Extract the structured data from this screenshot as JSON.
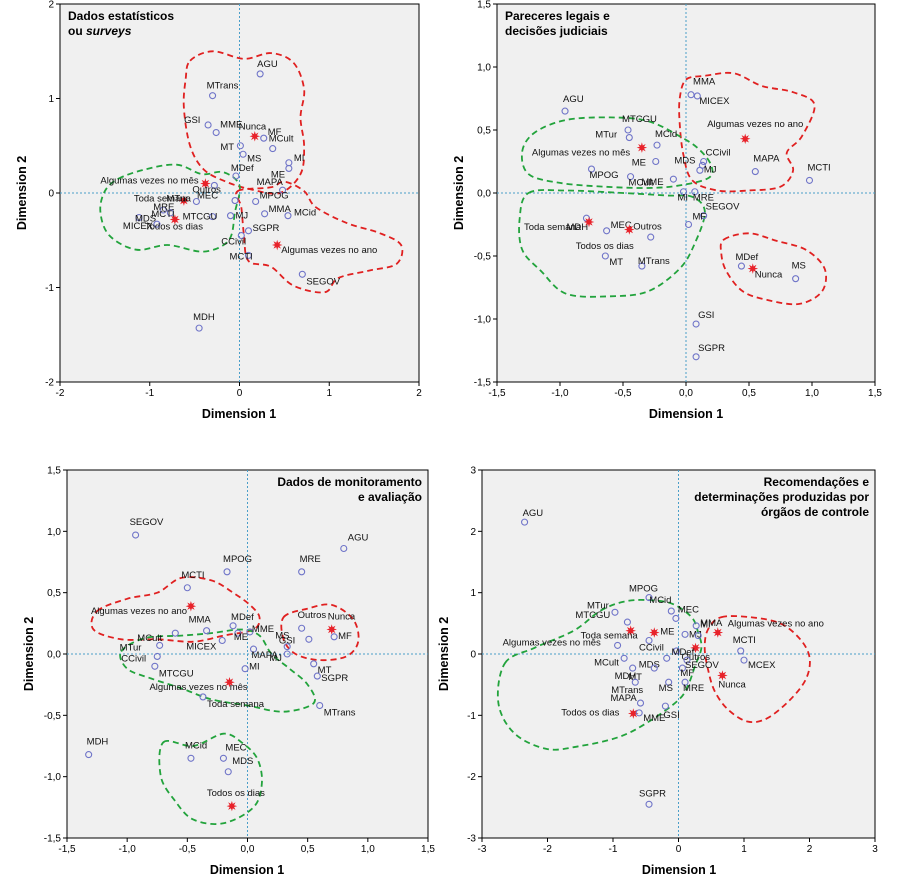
{
  "colors": {
    "panel_bg": "#f0f0f0",
    "point_stroke": "#6f74c8",
    "star": "#e8222a",
    "red_outline": "#e02020",
    "green_outline": "#22a33c",
    "refline": "#4a9ec9"
  },
  "chart_data": [
    {
      "type": "scatter",
      "title": "Dados estatísticos ou surveys",
      "title_lines": [
        "Dados estatísticos",
        "ou surveys"
      ],
      "title_position": "top-left",
      "xlabel": "Dimension 1",
      "ylabel": "Dimension 2",
      "xlim": [
        -2,
        2
      ],
      "ylim": [
        -2,
        2
      ],
      "xticks": [
        -2,
        -1,
        0,
        1,
        2
      ],
      "yticks": [
        -2,
        -1,
        0,
        1,
        2
      ],
      "xtick_labels": [
        "-2",
        "-1",
        "0",
        "1",
        "2"
      ],
      "ytick_labels": [
        "-2",
        "-1",
        "0",
        "1",
        "2"
      ],
      "points": [
        {
          "label": "AGU",
          "x": 0.23,
          "y": 1.26,
          "kind": "circle"
        },
        {
          "label": "MTrans",
          "x": -0.3,
          "y": 1.03,
          "kind": "circle"
        },
        {
          "label": "GSI",
          "x": -0.35,
          "y": 0.72,
          "kind": "circle"
        },
        {
          "label": "MME",
          "x": -0.26,
          "y": 0.64,
          "kind": "circle"
        },
        {
          "label": "Nunca",
          "x": 0.17,
          "y": 0.6,
          "kind": "star"
        },
        {
          "label": "MF",
          "x": 0.27,
          "y": 0.58,
          "kind": "circle"
        },
        {
          "label": "MT",
          "x": 0.01,
          "y": 0.5,
          "kind": "circle"
        },
        {
          "label": "MCult",
          "x": 0.37,
          "y": 0.47,
          "kind": "circle"
        },
        {
          "label": "MS",
          "x": 0.04,
          "y": 0.41,
          "kind": "circle"
        },
        {
          "label": "MI",
          "x": 0.55,
          "y": 0.32,
          "kind": "circle"
        },
        {
          "label": "ME",
          "x": 0.55,
          "y": 0.26,
          "kind": "circle"
        },
        {
          "label": "MDef",
          "x": -0.04,
          "y": 0.18,
          "kind": "circle"
        },
        {
          "label": "Algumas vezes no mês",
          "x": -0.38,
          "y": 0.1,
          "kind": "star"
        },
        {
          "label": "Outros",
          "x": -0.28,
          "y": 0.08,
          "kind": "circle"
        },
        {
          "label": "MAPA",
          "x": 0.48,
          "y": 0.03,
          "kind": "circle"
        },
        {
          "label": "Toda semana",
          "x": -0.62,
          "y": -0.08,
          "kind": "star"
        },
        {
          "label": "MTur",
          "x": -0.48,
          "y": -0.09,
          "kind": "circle"
        },
        {
          "label": "MEC",
          "x": -0.05,
          "y": -0.08,
          "kind": "circle"
        },
        {
          "label": "MPOG",
          "x": 0.18,
          "y": -0.09,
          "kind": "circle"
        },
        {
          "label": "MRE",
          "x": -0.85,
          "y": -0.18,
          "kind": "circle"
        },
        {
          "label": "MDS",
          "x": -1.12,
          "y": -0.26,
          "kind": "circle"
        },
        {
          "label": "MCTI",
          "x": -0.77,
          "y": -0.21,
          "kind": "circle"
        },
        {
          "label": "MTCGU",
          "x": -0.3,
          "y": -0.25,
          "kind": "circle"
        },
        {
          "label": "MJ",
          "x": -0.1,
          "y": -0.24,
          "kind": "circle"
        },
        {
          "label": "MMA",
          "x": 0.28,
          "y": -0.22,
          "kind": "circle"
        },
        {
          "label": "MCid",
          "x": 0.54,
          "y": -0.24,
          "kind": "circle"
        },
        {
          "label": "MICEX",
          "x": -0.92,
          "y": -0.33,
          "kind": "circle"
        },
        {
          "label": "Todos os dias",
          "x": -0.72,
          "y": -0.28,
          "kind": "star"
        },
        {
          "label": "SGPR",
          "x": 0.1,
          "y": -0.4,
          "kind": "circle"
        },
        {
          "label": "CCivil",
          "x": 0.02,
          "y": -0.45,
          "kind": "circle"
        },
        {
          "label": "Algumas vezes no ano",
          "x": 0.42,
          "y": -0.55,
          "kind": "star"
        },
        {
          "label": "MCTI",
          "x": 0.1,
          "y": -0.66,
          "kind": "circle"
        },
        {
          "label": "SEGOV",
          "x": 0.7,
          "y": -0.86,
          "kind": "circle"
        },
        {
          "label": "MDH",
          "x": -0.45,
          "y": -1.43,
          "kind": "circle"
        }
      ]
    },
    {
      "type": "scatter",
      "title": "Pareceres legais e decisões judiciais",
      "title_lines": [
        "Pareceres legais e",
        "decisões judiciais"
      ],
      "title_position": "top-left",
      "xlabel": "Dimension 1",
      "ylabel": "Dimension 2",
      "xlim": [
        -1.5,
        1.5
      ],
      "ylim": [
        -1.5,
        1.5
      ],
      "xticks": [
        -1.5,
        -1.0,
        -0.5,
        0.0,
        0.5,
        1.0,
        1.5
      ],
      "yticks": [
        -1.5,
        -1.0,
        -0.5,
        0.0,
        0.5,
        1.0,
        1.5
      ],
      "xtick_labels": [
        "-1,5",
        "-1,0",
        "-0,5",
        "0,0",
        "0,5",
        "1,0",
        "1,5"
      ],
      "ytick_labels": [
        "-1,5",
        "-1,0",
        "-0,5",
        "0,0",
        "0,5",
        "1,0",
        "1,5"
      ],
      "points": [
        {
          "label": "MMA",
          "x": 0.04,
          "y": 0.78,
          "kind": "circle"
        },
        {
          "label": "MICEX",
          "x": 0.09,
          "y": 0.77,
          "kind": "circle"
        },
        {
          "label": "AGU",
          "x": -0.96,
          "y": 0.65,
          "kind": "circle"
        },
        {
          "label": "MTCGU",
          "x": -0.46,
          "y": 0.5,
          "kind": "circle"
        },
        {
          "label": "MTur",
          "x": -0.45,
          "y": 0.44,
          "kind": "circle"
        },
        {
          "label": "Algumas vezes no ano",
          "x": 0.47,
          "y": 0.43,
          "kind": "star"
        },
        {
          "label": "MCid",
          "x": -0.23,
          "y": 0.38,
          "kind": "circle"
        },
        {
          "label": "Algumas vezes no mês",
          "x": -0.35,
          "y": 0.36,
          "kind": "star"
        },
        {
          "label": "CCivil",
          "x": 0.14,
          "y": 0.25,
          "kind": "circle"
        },
        {
          "label": "ME",
          "x": -0.24,
          "y": 0.25,
          "kind": "circle"
        },
        {
          "label": "MDS",
          "x": 0.13,
          "y": 0.22,
          "kind": "circle"
        },
        {
          "label": "MAPA",
          "x": 0.55,
          "y": 0.17,
          "kind": "circle"
        },
        {
          "label": "MPOG",
          "x": -0.75,
          "y": 0.19,
          "kind": "circle"
        },
        {
          "label": "MJ",
          "x": 0.11,
          "y": 0.18,
          "kind": "circle"
        },
        {
          "label": "MCTI",
          "x": 0.98,
          "y": 0.1,
          "kind": "circle"
        },
        {
          "label": "MCult",
          "x": -0.44,
          "y": 0.13,
          "kind": "circle"
        },
        {
          "label": "MME",
          "x": -0.1,
          "y": 0.11,
          "kind": "circle"
        },
        {
          "label": "MI",
          "x": -0.02,
          "y": 0.01,
          "kind": "circle"
        },
        {
          "label": "MRE",
          "x": 0.07,
          "y": 0.01,
          "kind": "circle"
        },
        {
          "label": "SEGOV",
          "x": 0.14,
          "y": -0.18,
          "kind": "circle"
        },
        {
          "label": "MDH",
          "x": -0.79,
          "y": -0.2,
          "kind": "circle"
        },
        {
          "label": "MF",
          "x": 0.02,
          "y": -0.25,
          "kind": "circle"
        },
        {
          "label": "Toda semana",
          "x": -0.77,
          "y": -0.23,
          "kind": "star"
        },
        {
          "label": "MEC",
          "x": -0.63,
          "y": -0.3,
          "kind": "circle"
        },
        {
          "label": "Outros",
          "x": -0.45,
          "y": -0.29,
          "kind": "star"
        },
        {
          "label": "Todos os dias",
          "x": -0.28,
          "y": -0.35,
          "kind": "circle"
        },
        {
          "label": "MT",
          "x": -0.64,
          "y": -0.5,
          "kind": "circle"
        },
        {
          "label": "MTrans",
          "x": -0.35,
          "y": -0.58,
          "kind": "circle"
        },
        {
          "label": "MDef",
          "x": 0.44,
          "y": -0.58,
          "kind": "circle"
        },
        {
          "label": "Nunca",
          "x": 0.53,
          "y": -0.6,
          "kind": "star"
        },
        {
          "label": "MS",
          "x": 0.87,
          "y": -0.68,
          "kind": "circle"
        },
        {
          "label": "GSI",
          "x": 0.08,
          "y": -1.04,
          "kind": "circle"
        },
        {
          "label": "SGPR",
          "x": 0.08,
          "y": -1.3,
          "kind": "circle"
        }
      ]
    },
    {
      "type": "scatter",
      "title": "Dados de monitoramento e avaliação",
      "title_lines": [
        "Dados de monitoramento",
        "e avaliação"
      ],
      "title_position": "top-right",
      "xlabel": "Dimension 1",
      "ylabel": "Dimension 2",
      "xlim": [
        -1.5,
        1.5
      ],
      "ylim": [
        -1.5,
        1.5
      ],
      "xticks": [
        -1.5,
        -1.0,
        -0.5,
        0.0,
        0.5,
        1.0,
        1.5
      ],
      "yticks": [
        -1.5,
        -1.0,
        -0.5,
        0.0,
        0.5,
        1.0,
        1.5
      ],
      "xtick_labels": [
        "-1,5",
        "-1,0",
        "-0,5",
        "0,0",
        "0,5",
        "1,0",
        "1,5"
      ],
      "ytick_labels": [
        "-1,5",
        "-1,0",
        "-0,5",
        "0,0",
        "0,5",
        "1,0",
        "1,5"
      ],
      "points": [
        {
          "label": "SEGOV",
          "x": -0.93,
          "y": 0.97,
          "kind": "circle"
        },
        {
          "label": "AGU",
          "x": 0.8,
          "y": 0.86,
          "kind": "circle"
        },
        {
          "label": "MPOG",
          "x": -0.17,
          "y": 0.67,
          "kind": "circle"
        },
        {
          "label": "MRE",
          "x": 0.45,
          "y": 0.67,
          "kind": "circle"
        },
        {
          "label": "MCTI",
          "x": -0.5,
          "y": 0.54,
          "kind": "circle"
        },
        {
          "label": "Algumas vezes no ano",
          "x": -0.47,
          "y": 0.39,
          "kind": "star"
        },
        {
          "label": "MMA",
          "x": -0.34,
          "y": 0.19,
          "kind": "circle"
        },
        {
          "label": "MDef",
          "x": -0.12,
          "y": 0.23,
          "kind": "circle"
        },
        {
          "label": "Outros",
          "x": 0.45,
          "y": 0.21,
          "kind": "circle"
        },
        {
          "label": "Nunca",
          "x": 0.7,
          "y": 0.2,
          "kind": "star"
        },
        {
          "label": "MCult",
          "x": -0.6,
          "y": 0.17,
          "kind": "circle"
        },
        {
          "label": "ME",
          "x": -0.08,
          "y": 0.17,
          "kind": "circle"
        },
        {
          "label": "MME",
          "x": 0.02,
          "y": 0.18,
          "kind": "circle"
        },
        {
          "label": "MF",
          "x": 0.72,
          "y": 0.14,
          "kind": "circle"
        },
        {
          "label": "MICEX",
          "x": -0.21,
          "y": 0.11,
          "kind": "circle"
        },
        {
          "label": "GSI",
          "x": 0.51,
          "y": 0.12,
          "kind": "circle"
        },
        {
          "label": "MTur",
          "x": -0.73,
          "y": 0.07,
          "kind": "circle"
        },
        {
          "label": "MS",
          "x": 0.33,
          "y": 0.06,
          "kind": "circle"
        },
        {
          "label": "MAPA",
          "x": 0.05,
          "y": 0.04,
          "kind": "circle"
        },
        {
          "label": "MJ",
          "x": 0.33,
          "y": 0.0,
          "kind": "circle"
        },
        {
          "label": "CCivil",
          "x": -0.75,
          "y": -0.02,
          "kind": "circle"
        },
        {
          "label": "MT",
          "x": 0.55,
          "y": -0.08,
          "kind": "circle"
        },
        {
          "label": "MTCGU",
          "x": -0.77,
          "y": -0.1,
          "kind": "circle"
        },
        {
          "label": "MI",
          "x": -0.02,
          "y": -0.12,
          "kind": "circle"
        },
        {
          "label": "SGPR",
          "x": 0.58,
          "y": -0.18,
          "kind": "circle"
        },
        {
          "label": "Algumas vezes no mês",
          "x": -0.15,
          "y": -0.23,
          "kind": "star"
        },
        {
          "label": "Toda semana",
          "x": -0.37,
          "y": -0.35,
          "kind": "circle"
        },
        {
          "label": "MTrans",
          "x": 0.6,
          "y": -0.42,
          "kind": "circle"
        },
        {
          "label": "MDH",
          "x": -1.32,
          "y": -0.82,
          "kind": "circle"
        },
        {
          "label": "MCid",
          "x": -0.47,
          "y": -0.85,
          "kind": "circle"
        },
        {
          "label": "MEC",
          "x": -0.2,
          "y": -0.85,
          "kind": "circle"
        },
        {
          "label": "MDS",
          "x": -0.16,
          "y": -0.96,
          "kind": "circle"
        },
        {
          "label": "Todos os dias",
          "x": -0.13,
          "y": -1.24,
          "kind": "star"
        }
      ]
    },
    {
      "type": "scatter",
      "title": "Recomendações e determinações produzidas por órgãos de controle",
      "title_lines": [
        "Recomendações e",
        "determinações produzidas por",
        "órgãos de controle"
      ],
      "title_position": "top-right",
      "xlabel": "Dimension 1",
      "ylabel": "Dimension 2",
      "xlim": [
        -3,
        3
      ],
      "ylim": [
        -3,
        3
      ],
      "xticks": [
        -3,
        -2,
        -1,
        0,
        1,
        2,
        3
      ],
      "yticks": [
        -3,
        -2,
        -1,
        0,
        1,
        2,
        3
      ],
      "xtick_labels": [
        "-3",
        "-2",
        "-1",
        "0",
        "1",
        "2",
        "3"
      ],
      "ytick_labels": [
        "-3",
        "-2",
        "-1",
        "0",
        "1",
        "2",
        "3"
      ],
      "points": [
        {
          "label": "AGU",
          "x": -2.35,
          "y": 2.15,
          "kind": "circle"
        },
        {
          "label": "MPOG",
          "x": -0.45,
          "y": 0.92,
          "kind": "circle"
        },
        {
          "label": "MTur",
          "x": -0.97,
          "y": 0.68,
          "kind": "circle"
        },
        {
          "label": "MCid",
          "x": -0.11,
          "y": 0.7,
          "kind": "circle"
        },
        {
          "label": "MEC",
          "x": -0.04,
          "y": 0.58,
          "kind": "circle"
        },
        {
          "label": "MTCGU",
          "x": -0.78,
          "y": 0.52,
          "kind": "circle"
        },
        {
          "label": "MMA",
          "x": 0.27,
          "y": 0.46,
          "kind": "circle"
        },
        {
          "label": "Toda semana",
          "x": -0.73,
          "y": 0.38,
          "kind": "star"
        },
        {
          "label": "ME",
          "x": -0.37,
          "y": 0.35,
          "kind": "star"
        },
        {
          "label": "MJ",
          "x": 0.1,
          "y": 0.32,
          "kind": "circle"
        },
        {
          "label": "MI",
          "x": 0.3,
          "y": 0.3,
          "kind": "circle"
        },
        {
          "label": "Algumas vezes no ano",
          "x": 0.6,
          "y": 0.35,
          "kind": "star"
        },
        {
          "label": "CCivil",
          "x": -0.45,
          "y": 0.22,
          "kind": "circle"
        },
        {
          "label": "Algumas vezes no mês",
          "x": -0.93,
          "y": 0.14,
          "kind": "circle"
        },
        {
          "label": "Outros",
          "x": 0.26,
          "y": 0.1,
          "kind": "star"
        },
        {
          "label": "MCTI",
          "x": 0.95,
          "y": 0.05,
          "kind": "circle"
        },
        {
          "label": "MDef",
          "x": -0.03,
          "y": 0.05,
          "kind": "circle"
        },
        {
          "label": "MCult",
          "x": -0.83,
          "y": -0.07,
          "kind": "circle"
        },
        {
          "label": "MDS",
          "x": -0.18,
          "y": -0.07,
          "kind": "circle"
        },
        {
          "label": "SEGOV",
          "x": 0.13,
          "y": -0.1,
          "kind": "circle"
        },
        {
          "label": "MCEX",
          "x": 1.0,
          "y": -0.1,
          "kind": "circle"
        },
        {
          "label": "MDH",
          "x": -0.7,
          "y": -0.23,
          "kind": "circle"
        },
        {
          "label": "MT",
          "x": -0.37,
          "y": -0.23,
          "kind": "circle"
        },
        {
          "label": "MF",
          "x": 0.06,
          "y": -0.23,
          "kind": "circle"
        },
        {
          "label": "Nunca",
          "x": 0.67,
          "y": -0.35,
          "kind": "star"
        },
        {
          "label": "MTrans",
          "x": -0.66,
          "y": -0.46,
          "kind": "circle"
        },
        {
          "label": "MS",
          "x": -0.15,
          "y": -0.46,
          "kind": "circle"
        },
        {
          "label": "MRE",
          "x": 0.1,
          "y": -0.46,
          "kind": "circle"
        },
        {
          "label": "MAPA",
          "x": -0.58,
          "y": -0.8,
          "kind": "circle"
        },
        {
          "label": "GSI",
          "x": -0.2,
          "y": -0.85,
          "kind": "circle"
        },
        {
          "label": "Todos os dias",
          "x": -0.69,
          "y": -0.97,
          "kind": "star"
        },
        {
          "label": "MME",
          "x": -0.6,
          "y": -0.96,
          "kind": "circle"
        },
        {
          "label": "SGPR",
          "x": -0.45,
          "y": -2.45,
          "kind": "circle"
        }
      ]
    }
  ]
}
